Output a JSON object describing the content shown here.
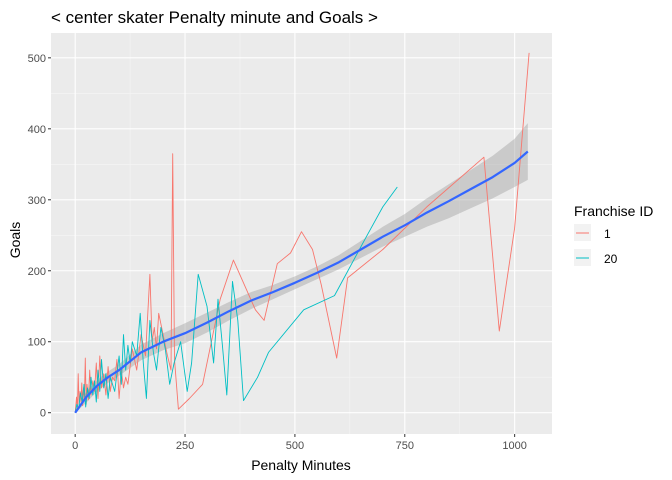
{
  "chart_data": {
    "type": "line",
    "title": "< center skater Penalty minute and Goals >",
    "xlabel": "Penalty Minutes",
    "ylabel": "Goals",
    "xlim": [
      -55,
      1085
    ],
    "ylim": [
      -30,
      535
    ],
    "x_ticks": [
      0,
      250,
      500,
      750,
      1000
    ],
    "y_ticks": [
      0,
      100,
      200,
      300,
      400,
      500
    ],
    "grid": true,
    "legend": {
      "title": "Franchise ID",
      "placement": "right"
    },
    "series": [
      {
        "name": "1",
        "color": "#F8766D",
        "points": [
          [
            0,
            0
          ],
          [
            3,
            22
          ],
          [
            5,
            5
          ],
          [
            7,
            55
          ],
          [
            9,
            8
          ],
          [
            11,
            30
          ],
          [
            13,
            15
          ],
          [
            15,
            42
          ],
          [
            17,
            10
          ],
          [
            19,
            35
          ],
          [
            21,
            20
          ],
          [
            23,
            77
          ],
          [
            25,
            12
          ],
          [
            27,
            40
          ],
          [
            30,
            18
          ],
          [
            33,
            60
          ],
          [
            36,
            25
          ],
          [
            40,
            45
          ],
          [
            44,
            30
          ],
          [
            48,
            70
          ],
          [
            52,
            20
          ],
          [
            56,
            80
          ],
          [
            60,
            35
          ],
          [
            65,
            55
          ],
          [
            70,
            25
          ],
          [
            75,
            65
          ],
          [
            80,
            30
          ],
          [
            85,
            50
          ],
          [
            90,
            45
          ],
          [
            95,
            75
          ],
          [
            100,
            20
          ],
          [
            105,
            60
          ],
          [
            110,
            35
          ],
          [
            115,
            50
          ],
          [
            120,
            40
          ],
          [
            130,
            90
          ],
          [
            140,
            60
          ],
          [
            150,
            110
          ],
          [
            160,
            80
          ],
          [
            170,
            195
          ],
          [
            175,
            100
          ],
          [
            180,
            120
          ],
          [
            185,
            90
          ],
          [
            190,
            140
          ],
          [
            200,
            110
          ],
          [
            210,
            80
          ],
          [
            218,
            60
          ],
          [
            222,
            365
          ],
          [
            226,
            75
          ],
          [
            235,
            5
          ],
          [
            260,
            20
          ],
          [
            290,
            40
          ],
          [
            330,
            160
          ],
          [
            360,
            215
          ],
          [
            410,
            145
          ],
          [
            430,
            130
          ],
          [
            460,
            210
          ],
          [
            490,
            225
          ],
          [
            515,
            255
          ],
          [
            540,
            230
          ],
          [
            560,
            180
          ],
          [
            595,
            77
          ],
          [
            620,
            190
          ],
          [
            700,
            230
          ],
          [
            800,
            290
          ],
          [
            930,
            360
          ],
          [
            965,
            115
          ],
          [
            1000,
            260
          ],
          [
            1033,
            507
          ]
        ]
      },
      {
        "name": "20",
        "color": "#00BFC4",
        "points": [
          [
            0,
            0
          ],
          [
            4,
            12
          ],
          [
            8,
            5
          ],
          [
            12,
            28
          ],
          [
            16,
            15
          ],
          [
            20,
            40
          ],
          [
            24,
            8
          ],
          [
            28,
            35
          ],
          [
            32,
            20
          ],
          [
            36,
            50
          ],
          [
            40,
            25
          ],
          [
            44,
            45
          ],
          [
            48,
            15
          ],
          [
            52,
            60
          ],
          [
            56,
            30
          ],
          [
            60,
            75
          ],
          [
            65,
            35
          ],
          [
            70,
            55
          ],
          [
            75,
            20
          ],
          [
            80,
            50
          ],
          [
            90,
            30
          ],
          [
            100,
            80
          ],
          [
            105,
            40
          ],
          [
            110,
            110
          ],
          [
            115,
            60
          ],
          [
            120,
            95
          ],
          [
            125,
            70
          ],
          [
            130,
            100
          ],
          [
            140,
            80
          ],
          [
            148,
            140
          ],
          [
            155,
            70
          ],
          [
            162,
            20
          ],
          [
            170,
            130
          ],
          [
            178,
            85
          ],
          [
            185,
            60
          ],
          [
            195,
            120
          ],
          [
            205,
            90
          ],
          [
            215,
            40
          ],
          [
            225,
            70
          ],
          [
            240,
            100
          ],
          [
            255,
            30
          ],
          [
            265,
            70
          ],
          [
            280,
            195
          ],
          [
            300,
            150
          ],
          [
            315,
            70
          ],
          [
            325,
            160
          ],
          [
            335,
            95
          ],
          [
            345,
            25
          ],
          [
            358,
            185
          ],
          [
            370,
            130
          ],
          [
            383,
            17
          ],
          [
            415,
            50
          ],
          [
            440,
            85
          ],
          [
            520,
            145
          ],
          [
            590,
            165
          ],
          [
            660,
            245
          ],
          [
            700,
            290
          ],
          [
            733,
            318
          ]
        ]
      }
    ],
    "smooth": {
      "color": "#3366FF",
      "band_color": "#999999",
      "points": [
        [
          0,
          0,
          0,
          0
        ],
        [
          25,
          22,
          14,
          30
        ],
        [
          50,
          38,
          30,
          46
        ],
        [
          75,
          50,
          42,
          58
        ],
        [
          100,
          60,
          52,
          68
        ],
        [
          150,
          85,
          74,
          96
        ],
        [
          200,
          100,
          88,
          112
        ],
        [
          250,
          112,
          98,
          126
        ],
        [
          300,
          127,
          113,
          141
        ],
        [
          350,
          143,
          130,
          156
        ],
        [
          400,
          158,
          146,
          170
        ],
        [
          450,
          170,
          160,
          180
        ],
        [
          500,
          183,
          174,
          192
        ],
        [
          550,
          197,
          188,
          206
        ],
        [
          600,
          212,
          202,
          222
        ],
        [
          650,
          230,
          218,
          242
        ],
        [
          700,
          248,
          234,
          262
        ],
        [
          750,
          264,
          248,
          280
        ],
        [
          800,
          282,
          262,
          302
        ],
        [
          850,
          298,
          274,
          322
        ],
        [
          900,
          315,
          288,
          342
        ],
        [
          950,
          332,
          302,
          362
        ],
        [
          1000,
          352,
          318,
          386
        ],
        [
          1030,
          368,
          328,
          408
        ]
      ]
    }
  }
}
